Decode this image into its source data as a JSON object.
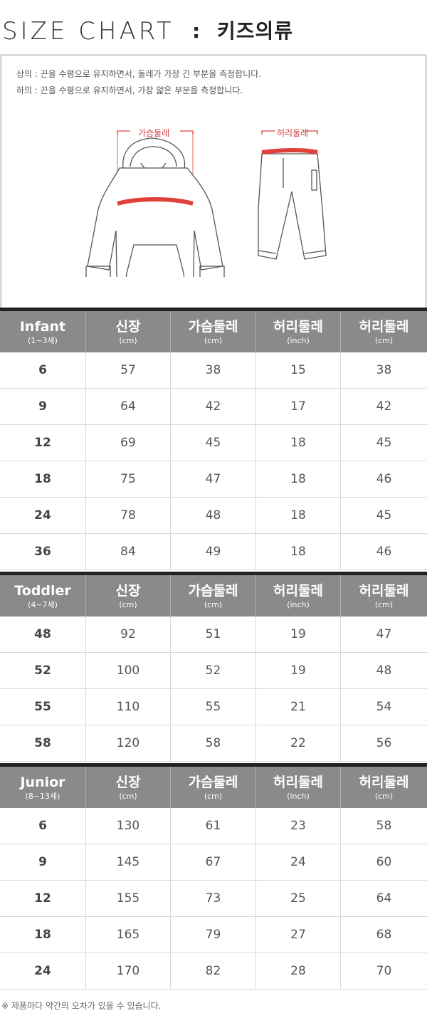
{
  "title": {
    "en": "SIZE CHART",
    "separator": ":",
    "ko": "키즈의류"
  },
  "guide": {
    "note_top": "상의 : 끈을 수평으로 유지하면서, 둘레가 가장 긴 부분을 측정합니다.",
    "note_bottom": "하의 : 끈을 수평으로 유지하면서, 가장 얇은 부분을 측정합니다.",
    "top_label": "가슴둘레",
    "bottom_label": "허리둘레",
    "accent_color": "#e0403a"
  },
  "tables": [
    {
      "group": "Infant",
      "range": "(1~3세)",
      "columns": [
        {
          "main": "신장",
          "sub": "(cm)"
        },
        {
          "main": "가슴둘레",
          "sub": "(cm)"
        },
        {
          "main": "허리둘레",
          "sub": "(inch)"
        },
        {
          "main": "허리둘레",
          "sub": "(cm)"
        }
      ],
      "rows": [
        [
          "6",
          "57",
          "38",
          "15",
          "38"
        ],
        [
          "9",
          "64",
          "42",
          "17",
          "42"
        ],
        [
          "12",
          "69",
          "45",
          "18",
          "45"
        ],
        [
          "18",
          "75",
          "47",
          "18",
          "46"
        ],
        [
          "24",
          "78",
          "48",
          "18",
          "45"
        ],
        [
          "36",
          "84",
          "49",
          "18",
          "46"
        ]
      ]
    },
    {
      "group": "Toddler",
      "range": "(4~7세)",
      "columns": [
        {
          "main": "신장",
          "sub": "(cm)"
        },
        {
          "main": "가슴둘레",
          "sub": "(cm)"
        },
        {
          "main": "허리둘레",
          "sub": "(inch)"
        },
        {
          "main": "허리둘레",
          "sub": "(cm)"
        }
      ],
      "rows": [
        [
          "48",
          "92",
          "51",
          "19",
          "47"
        ],
        [
          "52",
          "100",
          "52",
          "19",
          "48"
        ],
        [
          "55",
          "110",
          "55",
          "21",
          "54"
        ],
        [
          "58",
          "120",
          "58",
          "22",
          "56"
        ]
      ]
    },
    {
      "group": "Junior",
      "range": "(8~13세)",
      "columns": [
        {
          "main": "신장",
          "sub": "(cm)"
        },
        {
          "main": "가슴둘레",
          "sub": "(cm)"
        },
        {
          "main": "허리둘레",
          "sub": "(inch)"
        },
        {
          "main": "허리둘레",
          "sub": "(cm)"
        }
      ],
      "rows": [
        [
          "6",
          "130",
          "61",
          "23",
          "58"
        ],
        [
          "9",
          "145",
          "67",
          "24",
          "60"
        ],
        [
          "12",
          "155",
          "73",
          "25",
          "64"
        ],
        [
          "18",
          "165",
          "79",
          "27",
          "68"
        ],
        [
          "24",
          "170",
          "82",
          "28",
          "70"
        ]
      ]
    }
  ],
  "footnote": "※ 제품마다 약간의 오차가 있을 수 있습니다."
}
